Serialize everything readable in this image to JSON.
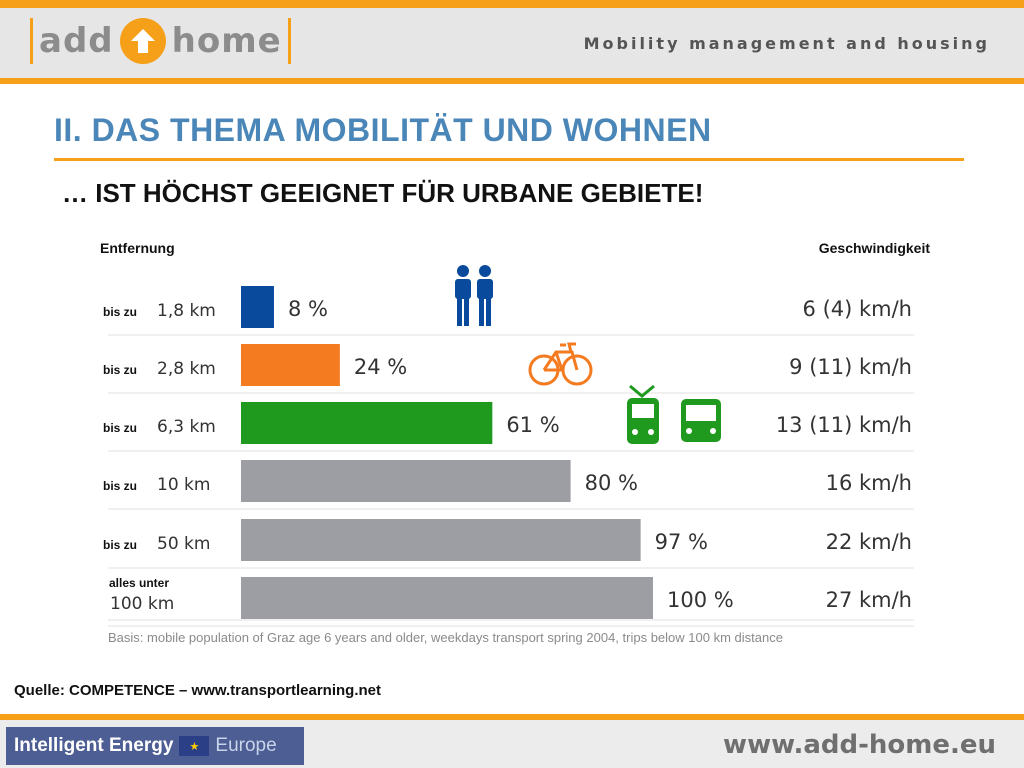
{
  "header": {
    "logo_left": "add",
    "logo_right": "home",
    "tagline": "Mobility management and housing"
  },
  "title": "II. DAS THEMA MOBILITÄT UND WOHNEN",
  "subtitle": "… IST HÖCHST GEEIGNET FÜR URBANE GEBIETE!",
  "colors": {
    "accent": "#f6a01a",
    "title": "#4a86b8"
  },
  "chart_data": {
    "type": "bar",
    "orientation": "horizontal",
    "left_header": "Entfernung",
    "right_header": "Geschwindigkeit",
    "categories": [
      "1,8 km",
      "2,8 km",
      "6,3 km",
      "10 km",
      "50 km",
      "100 km"
    ],
    "prefixes": [
      "bis zu",
      "bis zu",
      "bis zu",
      "bis zu",
      "bis zu",
      "alles unter"
    ],
    "values": [
      8,
      24,
      61,
      80,
      97,
      100
    ],
    "value_labels": [
      "8 %",
      "24 %",
      "61 %",
      "80 %",
      "97 %",
      "100 %"
    ],
    "speeds": [
      "6 (4) km/h",
      "9 (11) km/h",
      "13 (11) km/h",
      "16 km/h",
      "22 km/h",
      "27 km/h"
    ],
    "bar_colors": [
      "#0a4a9c",
      "#f47b20",
      "#1f9a1f",
      "#9d9ea3",
      "#9d9ea3",
      "#9d9ea3"
    ],
    "icons": [
      "pedestrians-icon",
      "bicycle-icon",
      "tram-icon",
      "bus-icon"
    ],
    "xlim": [
      0,
      100
    ],
    "grid": false,
    "basis": "Basis: mobile population of Graz age 6 years and older, weekdays transport spring 2004, trips below 100 km distance"
  },
  "source": "Quelle: COMPETENCE – www.transportlearning.net",
  "footer": {
    "eu_left": "Intelligent Energy",
    "eu_right": "Europe",
    "website": "www.add-home.eu"
  }
}
